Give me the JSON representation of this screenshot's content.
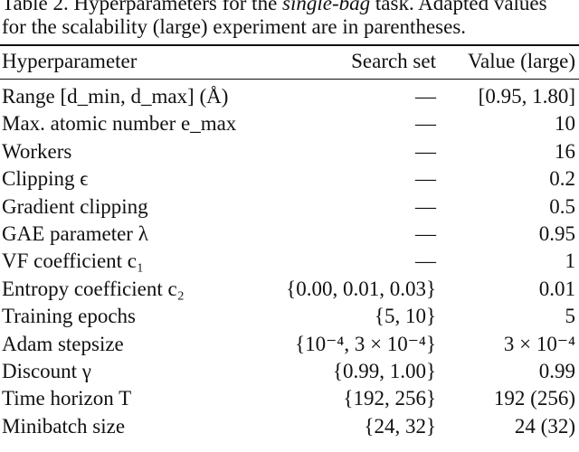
{
  "caption": {
    "prefix": "Table 2. Hyperparameters for the ",
    "emph": "single-bag",
    "suffix": " task. Adapted values",
    "line2": "for the scalability (large) experiment are in parentheses."
  },
  "table": {
    "headers": [
      "Hyperparameter",
      "Search set",
      "Value (large)"
    ],
    "rows": [
      {
        "param": "Range [d_min, d_max] (Å)",
        "search": "—",
        "value": "[0.95, 1.80]"
      },
      {
        "param": "Max. atomic number e_max",
        "search": "—",
        "value": "10"
      },
      {
        "param": "Workers",
        "search": "—",
        "value": "16"
      },
      {
        "param": "Clipping ϵ",
        "search": "—",
        "value": "0.2"
      },
      {
        "param": "Gradient clipping",
        "search": "—",
        "value": "0.5"
      },
      {
        "param": "GAE parameter λ",
        "search": "—",
        "value": "0.95"
      },
      {
        "param": "VF coefficient c₁",
        "search": "—",
        "value": "1"
      },
      {
        "param": "Entropy coefficient c₂",
        "search": "{0.00, 0.01, 0.03}",
        "value": "0.01"
      },
      {
        "param": "Training epochs",
        "search": "{5, 10}",
        "value": "5"
      },
      {
        "param": "Adam stepsize",
        "search": "{10⁻⁴, 3 × 10⁻⁴}",
        "value": "3 × 10⁻⁴"
      },
      {
        "param": "Discount γ",
        "search": "{0.99, 1.00}",
        "value": "0.99"
      },
      {
        "param": "Time horizon T",
        "search": "{192, 256}",
        "value": "192 (256)"
      },
      {
        "param": "Minibatch size",
        "search": "{24, 32}",
        "value": "24 (32)"
      }
    ]
  }
}
